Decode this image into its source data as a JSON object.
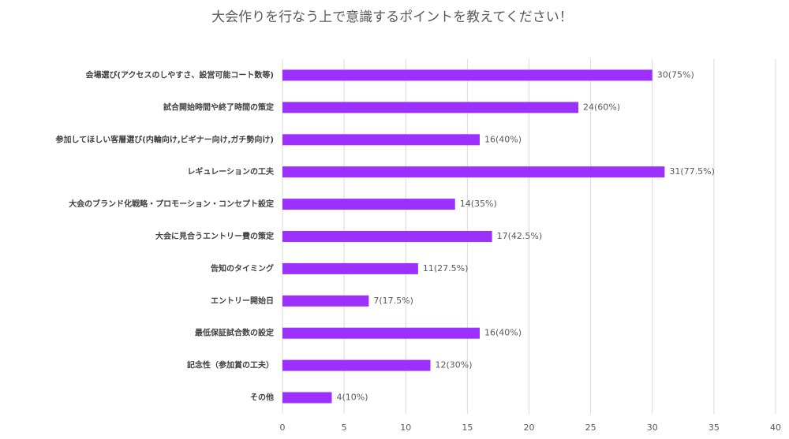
{
  "chart_data": {
    "type": "bar",
    "orientation": "horizontal",
    "title": "大会作りを行なう上で意識するポイントを教えてください！",
    "categories": [
      "会場選び(アクセスのしやすさ、設営可能コート数等)",
      "試合開始時間や終了時間の策定",
      "参加してほしい客層選び(内輪向け,ビギナー向け,ガチ勢向け)",
      "レギュレーションの工夫",
      "大会のブランド化戦略・プロモーション・コンセプト設定",
      "大会に見合うエントリー費の策定",
      "告知のタイミング",
      "エントリー開始日",
      "最低保証試合数の設定",
      "記念性（参加賞の工夫）",
      "その他"
    ],
    "values": [
      30,
      24,
      16,
      31,
      14,
      17,
      11,
      7,
      16,
      12,
      4
    ],
    "value_labels": [
      "30(75%)",
      "24(60%)",
      "16(40%)",
      "31(77.5%)",
      "14(35%)",
      "17(42.5%)",
      "11(27.5%)",
      "7(17.5%)",
      "16(40%)",
      "12(30%)",
      "4(10%)"
    ],
    "color": "#9b30ff",
    "xlim": [
      0,
      40
    ],
    "xticks": [
      0,
      5,
      10,
      15,
      20,
      25,
      30,
      35,
      40
    ],
    "grid": true
  }
}
